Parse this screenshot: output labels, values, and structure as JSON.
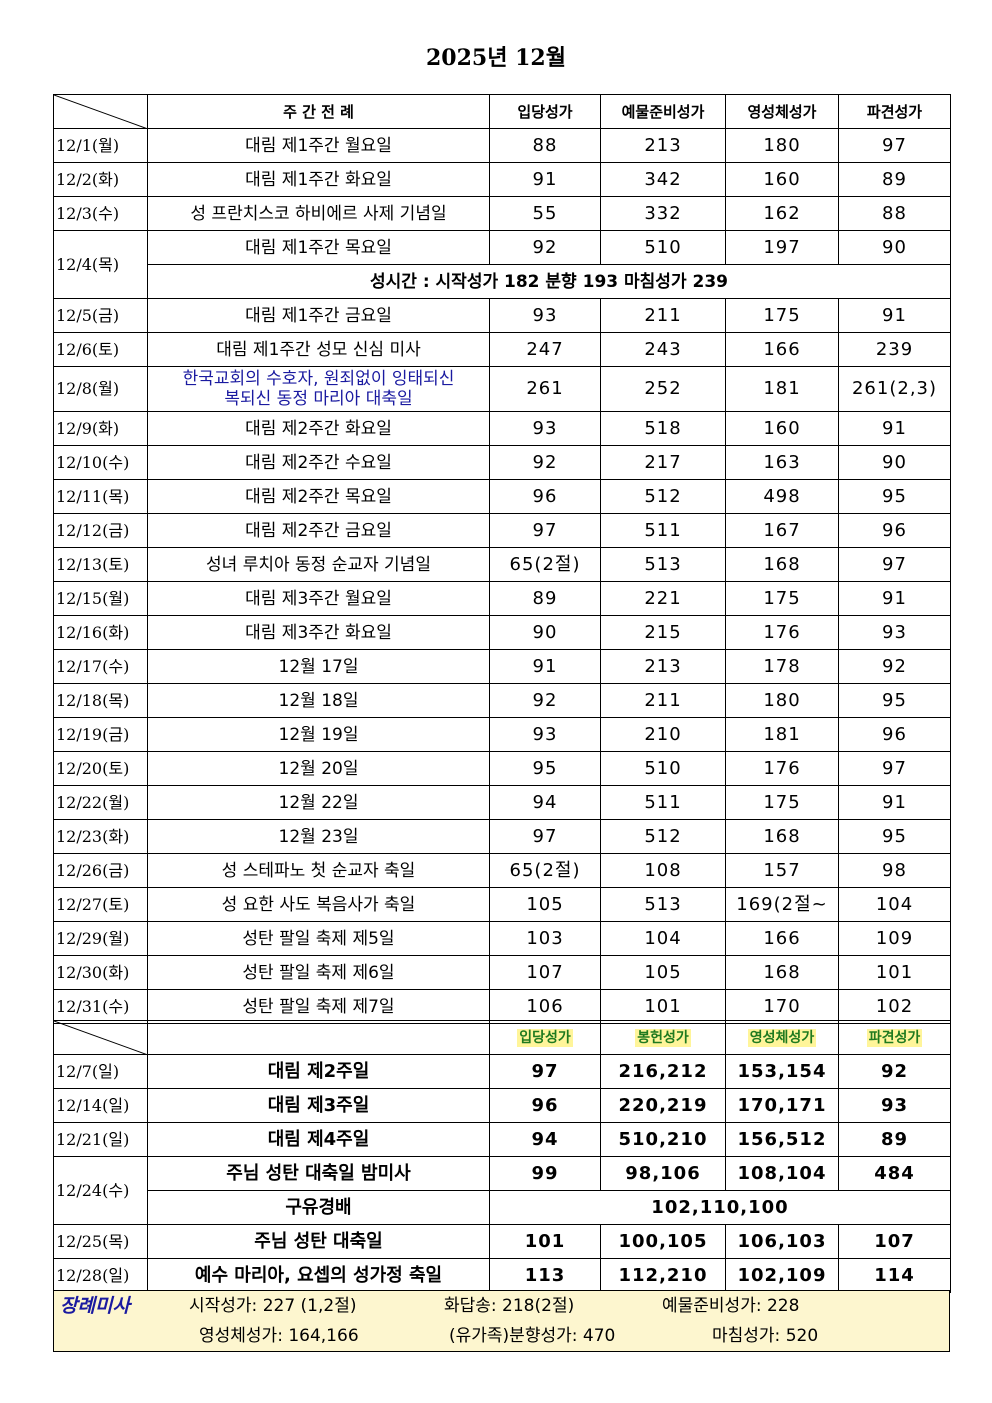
{
  "title": "2025년 12월",
  "weekday_table": {
    "headers": [
      "주 간 전 례",
      "입당성가",
      "예물준비성가",
      "영성체성가",
      "파견성가"
    ],
    "rows": [
      [
        "12/1(월)",
        "대림 제1주간 월요일",
        "88",
        "213",
        "180",
        "97"
      ],
      [
        "12/2(화)",
        "대림 제1주간 화요일",
        "91",
        "342",
        "160",
        "89"
      ],
      [
        "12/3(수)",
        "성 프란치스코 하비에르 사제 기념일",
        "55",
        "332",
        "162",
        "88"
      ],
      [
        "12/4(목)",
        "대림 제1주간 목요일",
        "92",
        "510",
        "197",
        "90"
      ],
      [
        "12/5(금)",
        "대림 제1주간 금요일",
        "93",
        "211",
        "175",
        "91"
      ],
      [
        "12/6(토)",
        "대림 제1주간 성모 신심 미사",
        "247",
        "243",
        "166",
        "239"
      ],
      [
        "12/8(월)",
        "한국교회의 수호자, 원죄없이 잉태되신\n복되신 동정 마리아 대축일",
        "261",
        "252",
        "181",
        "261(2,3)"
      ],
      [
        "12/9(화)",
        "대림 제2주간 화요일",
        "93",
        "518",
        "160",
        "91"
      ],
      [
        "12/10(수)",
        "대림 제2주간 수요일",
        "92",
        "217",
        "163",
        "90"
      ],
      [
        "12/11(목)",
        "대림 제2주간 목요일",
        "96",
        "512",
        "498",
        "95"
      ],
      [
        "12/12(금)",
        "대림 제2주간 금요일",
        "97",
        "511",
        "167",
        "96"
      ],
      [
        "12/13(토)",
        "성녀 루치아 동정 순교자 기념일",
        "65(2절)",
        "513",
        "168",
        "97"
      ],
      [
        "12/15(월)",
        "대림 제3주간 월요일",
        "89",
        "221",
        "175",
        "91"
      ],
      [
        "12/16(화)",
        "대림 제3주간 화요일",
        "90",
        "215",
        "176",
        "93"
      ],
      [
        "12/17(수)",
        "12월 17일",
        "91",
        "213",
        "178",
        "92"
      ],
      [
        "12/18(목)",
        "12월 18일",
        "92",
        "211",
        "180",
        "95"
      ],
      [
        "12/19(금)",
        "12월 19일",
        "93",
        "210",
        "181",
        "96"
      ],
      [
        "12/20(토)",
        "12월 20일",
        "95",
        "510",
        "176",
        "97"
      ],
      [
        "12/22(월)",
        "12월 22일",
        "94",
        "511",
        "175",
        "91"
      ],
      [
        "12/23(화)",
        "12월 23일",
        "97",
        "512",
        "168",
        "95"
      ],
      [
        "12/26(금)",
        "성 스테파노 첫 순교자 축일",
        "65(2절)",
        "108",
        "157",
        "98"
      ],
      [
        "12/27(토)",
        "성 요한 사도 복음사가 축일",
        "105",
        "513",
        "169(2절~",
        "104"
      ],
      [
        "12/29(월)",
        "성탄 팔일 축제 제5일",
        "103",
        "104",
        "166",
        "109"
      ],
      [
        "12/30(화)",
        "성탄 팔일 축제 제6일",
        "107",
        "105",
        "168",
        "101"
      ],
      [
        "12/31(수)",
        "성탄 팔일 축제 제7일",
        "106",
        "101",
        "170",
        "102"
      ]
    ],
    "note": "성시간 : 시작성가  182 분향 193  마침성가 239"
  },
  "sunday_table": {
    "headers": [
      "입당성가",
      "봉헌성가",
      "영성체성가",
      "파견성가"
    ],
    "rows": [
      [
        "12/7(일)",
        "대림 제2주일",
        "97",
        "216,212",
        "153,154",
        "92"
      ],
      [
        "12/14(일)",
        "대림 제3주일",
        "96",
        "220,219",
        "170,171",
        "93"
      ],
      [
        "12/21(일)",
        "대림 제4주일",
        "94",
        "510,210",
        "156,512",
        "89"
      ],
      [
        "12/24(수)",
        "주님 성탄 대축일 밤미사",
        "99",
        "98,106",
        "108,104",
        "484"
      ],
      [
        "12/25(목)",
        "주님 성탄 대축일",
        "101",
        "100,105",
        "106,103",
        "107"
      ],
      [
        "12/28(일)",
        "예수 마리아, 요셉의 성가정 축일",
        "113",
        "112,210",
        "102,109",
        "114"
      ]
    ],
    "extra": [
      "구유경배",
      "102,110,100"
    ]
  },
  "funeral": {
    "label": "장례미사",
    "lines": [
      [
        "시작성가: 227 (1,2절)",
        "화답송: 218(2절)",
        "예물준비성가: 228"
      ],
      [
        "영성체성가: 164,166",
        "(유가족)분향성가: 470",
        "마침성가: 520"
      ]
    ]
  }
}
